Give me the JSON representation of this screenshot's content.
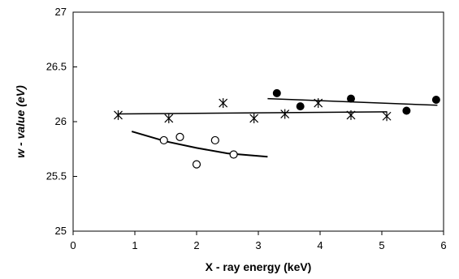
{
  "chart_data": {
    "type": "scatter",
    "title": "",
    "xlabel": "X - ray energy (keV)",
    "ylabel": "w - value (eV)",
    "xlim": [
      0,
      6
    ],
    "ylim": [
      25,
      27
    ],
    "x_ticks": [
      0,
      1,
      2,
      3,
      4,
      5,
      6
    ],
    "y_ticks": [
      25,
      25.5,
      26,
      26.5,
      27
    ],
    "x_tick_labels": [
      "0",
      "1",
      "2",
      "3",
      "4",
      "5",
      "6"
    ],
    "y_tick_labels": [
      "25",
      "25.5",
      "26",
      "26.5",
      "27"
    ],
    "grid": false,
    "series": [
      {
        "marker": "asterisk",
        "x": [
          0.73,
          1.55,
          2.43,
          2.93,
          3.43,
          3.97,
          4.5,
          5.08
        ],
        "y": [
          26.06,
          26.03,
          26.17,
          26.03,
          26.07,
          26.17,
          26.06,
          26.05
        ],
        "trend": {
          "kind": "linear",
          "x": [
            0.73,
            5.08
          ],
          "y": [
            26.07,
            26.09
          ]
        }
      },
      {
        "marker": "open-circle",
        "x": [
          1.47,
          1.73,
          2.0,
          2.3,
          2.6
        ],
        "y": [
          25.83,
          25.86,
          25.61,
          25.83,
          25.7
        ],
        "trend": {
          "kind": "curve",
          "x": [
            0.95,
            1.5,
            2.0,
            2.5,
            3.15
          ],
          "y": [
            25.91,
            25.82,
            25.76,
            25.71,
            25.68
          ]
        }
      },
      {
        "marker": "filled-circle",
        "x": [
          3.3,
          3.68,
          4.5,
          5.4,
          5.88
        ],
        "y": [
          26.26,
          26.14,
          26.21,
          26.1,
          26.2
        ],
        "trend": {
          "kind": "linear",
          "x": [
            3.15,
            5.9
          ],
          "y": [
            26.21,
            26.15
          ]
        }
      }
    ]
  }
}
